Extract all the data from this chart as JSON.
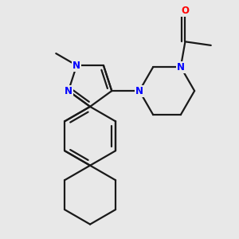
{
  "bg_color": "#e8e8e8",
  "bond_color": "#1a1a1a",
  "nitrogen_color": "#0000ff",
  "oxygen_color": "#ff0000",
  "bond_width": 1.6,
  "font_size_atom": 8.5,
  "xlim": [
    0.0,
    6.0
  ],
  "ylim": [
    0.0,
    6.5
  ]
}
